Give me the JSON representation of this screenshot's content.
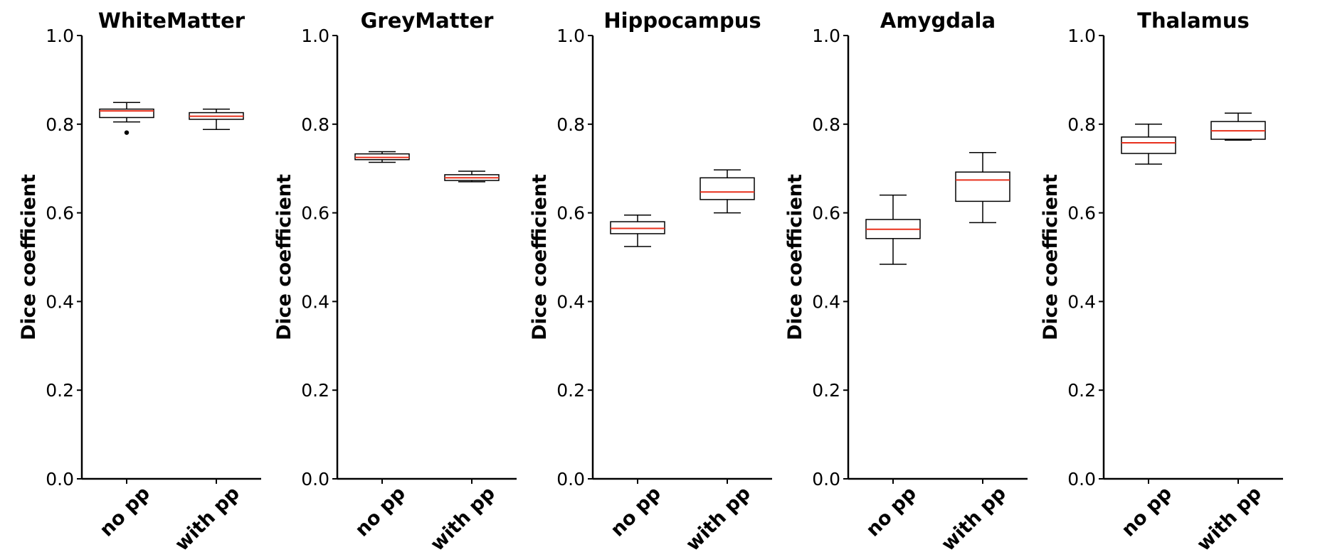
{
  "chart_data": [
    {
      "type": "box",
      "title": "WhiteMatter",
      "ylabel": "Dice coefficient",
      "ylim": [
        0.0,
        1.0
      ],
      "yticks": [
        "0.0",
        "0.2",
        "0.4",
        "0.6",
        "0.8",
        "1.0"
      ],
      "categories": [
        "no pp",
        "with pp"
      ],
      "boxes": [
        {
          "whisker_low": 0.805,
          "q1": 0.815,
          "median": 0.83,
          "q3": 0.834,
          "whisker_high": 0.849,
          "outliers": [
            0.781
          ]
        },
        {
          "whisker_low": 0.788,
          "q1": 0.811,
          "median": 0.818,
          "q3": 0.826,
          "whisker_high": 0.834,
          "outliers": []
        }
      ]
    },
    {
      "type": "box",
      "title": "GreyMatter",
      "ylabel": "Dice coefficient",
      "ylim": [
        0.0,
        1.0
      ],
      "yticks": [
        "0.0",
        "0.2",
        "0.4",
        "0.6",
        "0.8",
        "1.0"
      ],
      "categories": [
        "no pp",
        "with pp"
      ],
      "boxes": [
        {
          "whisker_low": 0.714,
          "q1": 0.72,
          "median": 0.725,
          "q3": 0.733,
          "whisker_high": 0.738,
          "outliers": []
        },
        {
          "whisker_low": 0.67,
          "q1": 0.673,
          "median": 0.679,
          "q3": 0.686,
          "whisker_high": 0.694,
          "outliers": []
        }
      ]
    },
    {
      "type": "box",
      "title": "Hippocampus",
      "ylabel": "Dice coefficient",
      "ylim": [
        0.0,
        1.0
      ],
      "yticks": [
        "0.0",
        "0.2",
        "0.4",
        "0.6",
        "0.8",
        "1.0"
      ],
      "categories": [
        "no pp",
        "with pp"
      ],
      "boxes": [
        {
          "whisker_low": 0.524,
          "q1": 0.553,
          "median": 0.565,
          "q3": 0.58,
          "whisker_high": 0.595,
          "outliers": []
        },
        {
          "whisker_low": 0.6,
          "q1": 0.63,
          "median": 0.647,
          "q3": 0.679,
          "whisker_high": 0.697,
          "outliers": []
        }
      ]
    },
    {
      "type": "box",
      "title": "Amygdala",
      "ylabel": "Dice coefficient",
      "ylim": [
        0.0,
        1.0
      ],
      "yticks": [
        "0.0",
        "0.2",
        "0.4",
        "0.6",
        "0.8",
        "1.0"
      ],
      "categories": [
        "no pp",
        "with pp"
      ],
      "boxes": [
        {
          "whisker_low": 0.484,
          "q1": 0.542,
          "median": 0.563,
          "q3": 0.585,
          "whisker_high": 0.64,
          "outliers": []
        },
        {
          "whisker_low": 0.578,
          "q1": 0.626,
          "median": 0.674,
          "q3": 0.692,
          "whisker_high": 0.736,
          "outliers": []
        }
      ]
    },
    {
      "type": "box",
      "title": "Thalamus",
      "ylabel": "Dice coefficient",
      "ylim": [
        0.0,
        1.0
      ],
      "yticks": [
        "0.0",
        "0.2",
        "0.4",
        "0.6",
        "0.8",
        "1.0"
      ],
      "categories": [
        "no pp",
        "with pp"
      ],
      "boxes": [
        {
          "whisker_low": 0.71,
          "q1": 0.734,
          "median": 0.758,
          "q3": 0.771,
          "whisker_high": 0.8,
          "outliers": []
        },
        {
          "whisker_low": 0.764,
          "q1": 0.766,
          "median": 0.785,
          "q3": 0.806,
          "whisker_high": 0.825,
          "outliers": []
        }
      ]
    }
  ],
  "colors": {
    "box_edge": "#000000",
    "median": "#e8301c",
    "axis": "#000000"
  },
  "grid": false,
  "legend": "none"
}
